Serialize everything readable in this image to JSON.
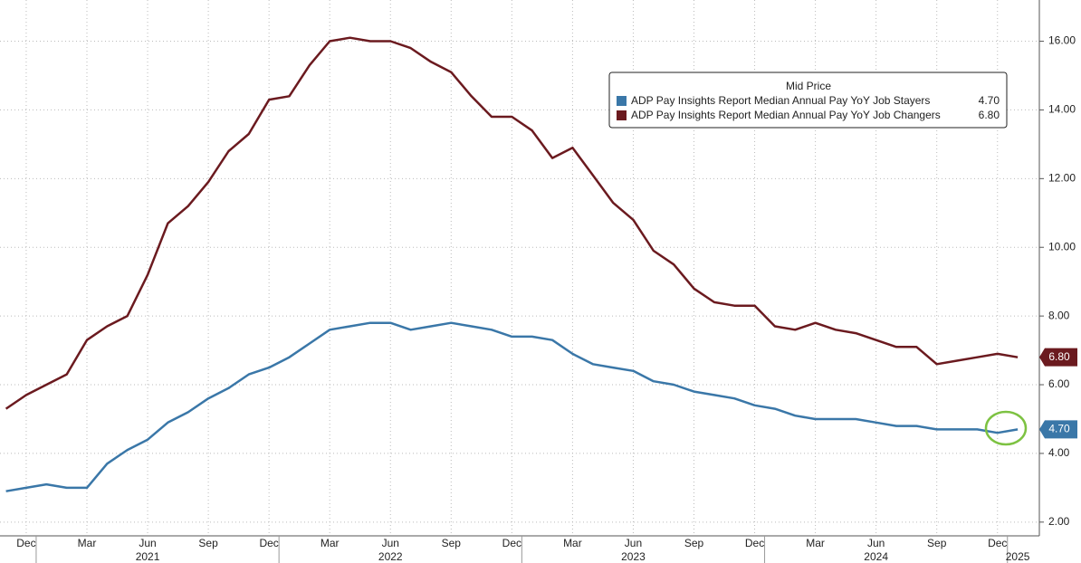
{
  "chart_data": {
    "type": "line",
    "categories": [
      null,
      "Dec",
      null,
      null,
      "Mar",
      null,
      null,
      "Jun",
      null,
      null,
      "Sep",
      null,
      null,
      "Dec",
      null,
      null,
      "Mar",
      null,
      null,
      "Jun",
      null,
      null,
      "Sep",
      null,
      null,
      "Dec",
      null,
      null,
      "Mar",
      null,
      null,
      "Jun",
      null,
      null,
      "Sep",
      null,
      null,
      "Dec",
      null,
      null,
      "Mar",
      null,
      null,
      "Jun",
      null,
      null,
      "Sep",
      null,
      null,
      "Dec",
      null
    ],
    "years": [
      null,
      null,
      null,
      null,
      null,
      null,
      null,
      "2021",
      null,
      null,
      null,
      null,
      null,
      null,
      null,
      null,
      null,
      null,
      null,
      "2022",
      null,
      null,
      null,
      null,
      null,
      null,
      null,
      null,
      null,
      null,
      null,
      "2023",
      null,
      null,
      null,
      null,
      null,
      null,
      null,
      null,
      null,
      null,
      null,
      "2024",
      null,
      null,
      null,
      null,
      null,
      null,
      "2025"
    ],
    "legend_title": "Mid Price",
    "series": [
      {
        "name": "ADP Pay Insights Report Median Annual Pay YoY Job Stayers",
        "color": "#3a77a8",
        "last_label": "4.70",
        "values": [
          2.9,
          3.0,
          3.1,
          3.0,
          3.0,
          3.7,
          4.1,
          4.4,
          4.9,
          5.2,
          5.6,
          5.9,
          6.3,
          6.5,
          6.8,
          7.2,
          7.6,
          7.7,
          7.8,
          7.8,
          7.6,
          7.7,
          7.8,
          7.7,
          7.6,
          7.4,
          7.4,
          7.3,
          6.9,
          6.6,
          6.5,
          6.4,
          6.1,
          6.0,
          5.8,
          5.7,
          5.6,
          5.4,
          5.3,
          5.1,
          5.0,
          5.0,
          5.0,
          4.9,
          4.8,
          4.8,
          4.7,
          4.7,
          4.7,
          4.6,
          4.7
        ]
      },
      {
        "name": "ADP Pay Insights Report Median Annual Pay YoY Job Changers",
        "color": "#6b1a1f",
        "last_label": "6.80",
        "values": [
          5.3,
          5.7,
          6.0,
          6.3,
          7.3,
          7.7,
          8.0,
          9.2,
          10.7,
          11.2,
          11.9,
          12.8,
          13.3,
          14.3,
          14.4,
          15.3,
          16.0,
          16.1,
          16.0,
          16.0,
          15.8,
          15.4,
          15.1,
          14.4,
          13.8,
          13.8,
          13.4,
          12.6,
          12.9,
          12.1,
          11.3,
          10.8,
          9.9,
          9.5,
          8.8,
          8.4,
          8.3,
          8.3,
          7.7,
          7.6,
          7.8,
          7.6,
          7.5,
          7.3,
          7.1,
          7.1,
          6.6,
          6.7,
          6.8,
          6.9,
          6.8
        ]
      }
    ],
    "ylim": [
      1.6,
      17.2
    ],
    "yticks": [
      {
        "value": 2,
        "label": "2.00"
      },
      {
        "value": 4,
        "label": "4.00"
      },
      {
        "value": 6,
        "label": "6.00"
      },
      {
        "value": 8,
        "label": "8.00"
      },
      {
        "value": 10,
        "label": "10.00"
      },
      {
        "value": 12,
        "label": "12.00"
      },
      {
        "value": 14,
        "label": "14.00"
      },
      {
        "value": 16,
        "label": "16.00"
      }
    ],
    "grid": true
  }
}
